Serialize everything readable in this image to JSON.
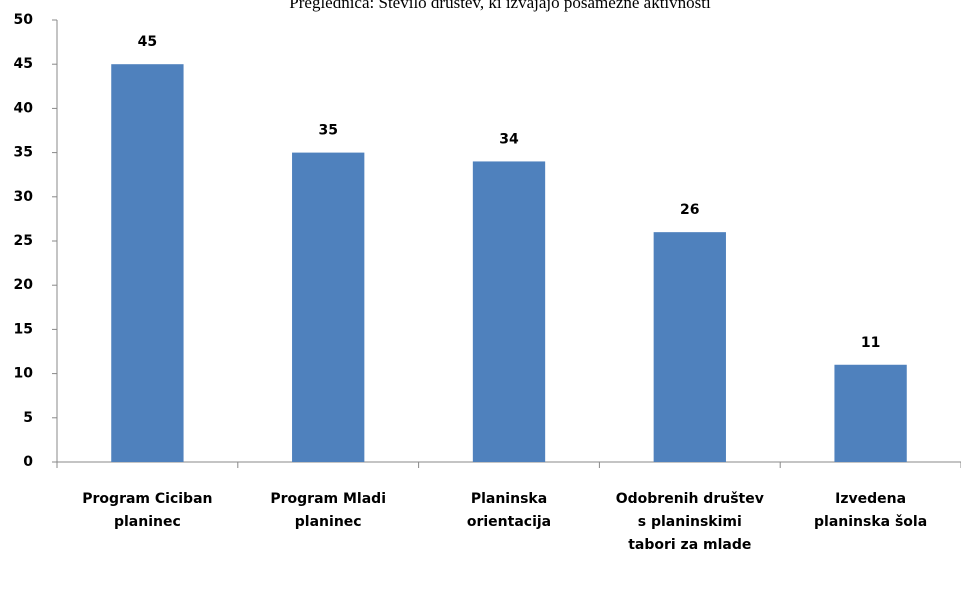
{
  "chart_data": {
    "type": "bar",
    "title": "Preglednica: Število društev, ki izvajajo posamezne aktivnosti",
    "categories": [
      "Program Ciciban planinec",
      "Program Mladi planinec",
      "Planinska orientacija",
      "Odobrenih društev s planinskimi tabori za mlade",
      "Izvedena planinska šola"
    ],
    "values": [
      45,
      35,
      34,
      26,
      11
    ],
    "color": "#4f81bd",
    "ylim": [
      0,
      50
    ],
    "yticks": [
      0,
      5,
      10,
      15,
      20,
      25,
      30,
      35,
      40,
      45,
      50
    ],
    "grid": false
  }
}
